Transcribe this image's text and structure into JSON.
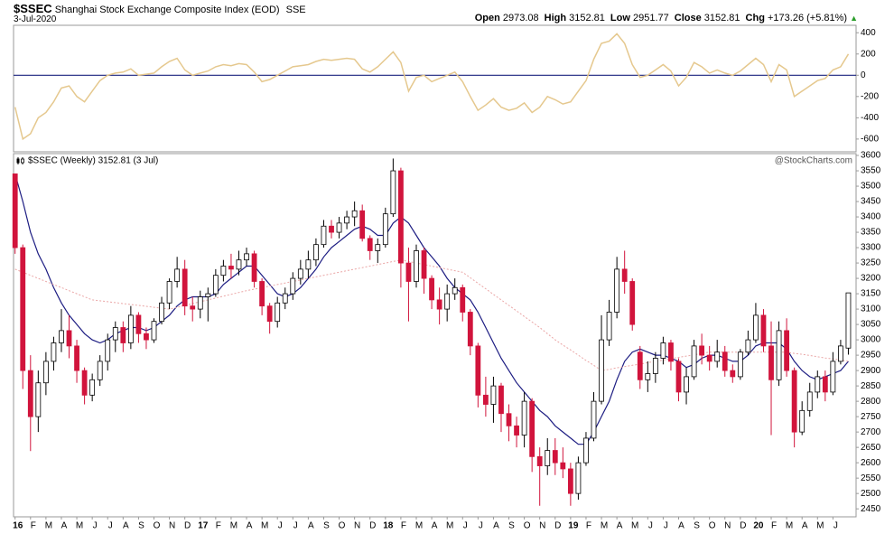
{
  "header": {
    "symbol": "$SSEC",
    "name": "Shanghai Stock Exchange Composite Index (EOD)",
    "exchange": "SSE",
    "date": "3-Jul-2020",
    "quote": [
      {
        "label": "Open",
        "value": "2973.08"
      },
      {
        "label": "High",
        "value": "3152.81"
      },
      {
        "label": "Low",
        "value": "2951.77"
      },
      {
        "label": "Close",
        "value": "3152.81"
      },
      {
        "label": "Chg",
        "value": "+173.26 (+5.81%)"
      }
    ]
  },
  "chart_data": [
    {
      "type": "line",
      "color": "#e5c88e",
      "zero_line_color": "#1a237e",
      "xlim": [
        -0.1,
        54.5
      ],
      "ylim": [
        -720,
        470
      ],
      "yticks": [
        400,
        200,
        0,
        -200,
        -400,
        -600
      ],
      "x": [
        0,
        0.5,
        1,
        1.5,
        2,
        2.5,
        3,
        3.5,
        4,
        4.5,
        5,
        5.5,
        6,
        6.5,
        7,
        7.5,
        8,
        8.5,
        9,
        9.5,
        10,
        10.5,
        11,
        11.5,
        12,
        12.5,
        13,
        13.5,
        14,
        14.5,
        15,
        15.5,
        16,
        16.5,
        17,
        17.5,
        18,
        18.5,
        19,
        19.5,
        20,
        20.5,
        21,
        21.5,
        22,
        22.5,
        23,
        23.5,
        24,
        24.5,
        25,
        25.5,
        26,
        26.5,
        27,
        27.5,
        28,
        28.5,
        29,
        29.5,
        30,
        30.5,
        31,
        31.5,
        32,
        32.5,
        33,
        33.5,
        34,
        34.5,
        35,
        35.5,
        36,
        36.5,
        37,
        37.5,
        38,
        38.5,
        39,
        39.5,
        40,
        40.5,
        41,
        41.5,
        42,
        42.5,
        43,
        43.5,
        44,
        44.5,
        45,
        45.5,
        46,
        46.5,
        47,
        47.5,
        48,
        48.5,
        49,
        49.5,
        50,
        50.5,
        51,
        51.5,
        52,
        52.5,
        53,
        53.5,
        54
      ],
      "values": [
        -300,
        -600,
        -550,
        -400,
        -350,
        -250,
        -120,
        -100,
        -200,
        -250,
        -150,
        -50,
        0,
        20,
        30,
        60,
        0,
        10,
        20,
        80,
        130,
        160,
        50,
        0,
        20,
        40,
        80,
        100,
        90,
        110,
        100,
        30,
        -60,
        -40,
        0,
        40,
        80,
        90,
        100,
        130,
        150,
        140,
        150,
        160,
        150,
        60,
        30,
        80,
        150,
        220,
        120,
        -150,
        -20,
        0,
        -60,
        -30,
        0,
        30,
        -60,
        -200,
        -330,
        -280,
        -220,
        -300,
        -330,
        -310,
        -260,
        -350,
        -300,
        -200,
        -230,
        -270,
        -250,
        -150,
        -50,
        150,
        300,
        320,
        390,
        300,
        100,
        -20,
        0,
        50,
        100,
        40,
        -100,
        -20,
        120,
        80,
        20,
        50,
        20,
        0,
        40,
        100,
        160,
        100,
        -60,
        100,
        50,
        -200,
        -150,
        -100,
        -50,
        -30,
        50,
        80,
        200
      ]
    },
    {
      "type": "candlestick",
      "legend": "$SSEC (Weekly) 3152.81 (3 Jul)",
      "watermark": "@StockCharts.com",
      "up_color": "#ffffff",
      "down_color": "#d1143c",
      "xlim": [
        -0.1,
        54.5
      ],
      "ylim": [
        2424,
        3606
      ],
      "yticks": [
        2450,
        2500,
        2550,
        2600,
        2650,
        2700,
        2750,
        2800,
        2850,
        2900,
        2950,
        3000,
        3050,
        3100,
        3150,
        3200,
        3250,
        3300,
        3350,
        3400,
        3450,
        3500,
        3550,
        3600
      ],
      "xticks": [
        {
          "value": 0,
          "label": "16"
        },
        {
          "value": 1,
          "label": "F"
        },
        {
          "value": 2,
          "label": "M"
        },
        {
          "value": 3,
          "label": "A"
        },
        {
          "value": 4,
          "label": "M"
        },
        {
          "value": 5,
          "label": "J"
        },
        {
          "value": 6,
          "label": "J"
        },
        {
          "value": 7,
          "label": "A"
        },
        {
          "value": 8,
          "label": "S"
        },
        {
          "value": 9,
          "label": "O"
        },
        {
          "value": 10,
          "label": "N"
        },
        {
          "value": 11,
          "label": "D"
        },
        {
          "value": 12,
          "label": "17"
        },
        {
          "value": 13,
          "label": "F"
        },
        {
          "value": 14,
          "label": "M"
        },
        {
          "value": 15,
          "label": "A"
        },
        {
          "value": 16,
          "label": "M"
        },
        {
          "value": 17,
          "label": "J"
        },
        {
          "value": 18,
          "label": "J"
        },
        {
          "value": 19,
          "label": "A"
        },
        {
          "value": 20,
          "label": "S"
        },
        {
          "value": 21,
          "label": "O"
        },
        {
          "value": 22,
          "label": "N"
        },
        {
          "value": 23,
          "label": "D"
        },
        {
          "value": 24,
          "label": "18"
        },
        {
          "value": 25,
          "label": "F"
        },
        {
          "value": 26,
          "label": "M"
        },
        {
          "value": 27,
          "label": "A"
        },
        {
          "value": 28,
          "label": "M"
        },
        {
          "value": 29,
          "label": "J"
        },
        {
          "value": 30,
          "label": "J"
        },
        {
          "value": 31,
          "label": "A"
        },
        {
          "value": 32,
          "label": "S"
        },
        {
          "value": 33,
          "label": "O"
        },
        {
          "value": 34,
          "label": "N"
        },
        {
          "value": 35,
          "label": "D"
        },
        {
          "value": 36,
          "label": "19"
        },
        {
          "value": 37,
          "label": "F"
        },
        {
          "value": 38,
          "label": "M"
        },
        {
          "value": 39,
          "label": "A"
        },
        {
          "value": 40,
          "label": "M"
        },
        {
          "value": 41,
          "label": "J"
        },
        {
          "value": 42,
          "label": "J"
        },
        {
          "value": 43,
          "label": "A"
        },
        {
          "value": 44,
          "label": "S"
        },
        {
          "value": 45,
          "label": "O"
        },
        {
          "value": 46,
          "label": "N"
        },
        {
          "value": 47,
          "label": "D"
        },
        {
          "value": 48,
          "label": "20"
        },
        {
          "value": 49,
          "label": "F"
        },
        {
          "value": 50,
          "label": "M"
        },
        {
          "value": 51,
          "label": "A"
        },
        {
          "value": 52,
          "label": "M"
        },
        {
          "value": 53,
          "label": "J"
        }
      ],
      "x": [
        0,
        0.5,
        1,
        1.5,
        2,
        2.5,
        3,
        3.5,
        4,
        4.5,
        5,
        5.5,
        6,
        6.5,
        7,
        7.5,
        8,
        8.5,
        9,
        9.5,
        10,
        10.5,
        11,
        11.5,
        12,
        12.5,
        13,
        13.5,
        14,
        14.5,
        15,
        15.5,
        16,
        16.5,
        17,
        17.5,
        18,
        18.5,
        19,
        19.5,
        20,
        20.5,
        21,
        21.5,
        22,
        22.5,
        23,
        23.5,
        24,
        24.5,
        25,
        25.5,
        26,
        26.5,
        27,
        27.5,
        28,
        28.5,
        29,
        29.5,
        30,
        30.5,
        31,
        31.5,
        32,
        32.5,
        33,
        33.5,
        34,
        34.5,
        35,
        35.5,
        36,
        36.5,
        37,
        37.5,
        38,
        38.5,
        39,
        39.5,
        40,
        40.5,
        41,
        41.5,
        42,
        42.5,
        43,
        43.5,
        44,
        44.5,
        45,
        45.5,
        46,
        46.5,
        47,
        47.5,
        48,
        48.5,
        49,
        49.5,
        50,
        50.5,
        51,
        51.5,
        52,
        52.5,
        53,
        53.5,
        54
      ],
      "open": [
        3540,
        3300,
        2900,
        2750,
        2860,
        2930,
        2990,
        3030,
        2980,
        2900,
        2820,
        2870,
        2930,
        3000,
        3040,
        2990,
        3080,
        3020,
        3000,
        3060,
        3120,
        3190,
        3230,
        3110,
        3100,
        3140,
        3150,
        3210,
        3240,
        3230,
        3260,
        3280,
        3190,
        3110,
        3060,
        3120,
        3150,
        3200,
        3230,
        3260,
        3310,
        3370,
        3350,
        3380,
        3400,
        3420,
        3330,
        3290,
        3310,
        3410,
        3550,
        3250,
        3190,
        3290,
        3200,
        3130,
        3100,
        3150,
        3170,
        3090,
        2980,
        2820,
        2790,
        2850,
        2760,
        2720,
        2690,
        2800,
        2620,
        2590,
        2640,
        2600,
        2580,
        2500,
        2600,
        2680,
        2800,
        3000,
        3090,
        3230,
        3190,
        2960,
        2870,
        2890,
        2940,
        2990,
        2930,
        2830,
        2880,
        2980,
        2950,
        2930,
        2960,
        2900,
        2880,
        2960,
        3000,
        3080,
        2980,
        2870,
        3030,
        2900,
        2700,
        2770,
        2830,
        2880,
        2830,
        2930,
        2973.08
      ],
      "high": [
        3540,
        3310,
        2950,
        2900,
        2960,
        3010,
        3100,
        3080,
        3000,
        2910,
        2890,
        2950,
        3020,
        3060,
        3060,
        3110,
        3090,
        3040,
        3070,
        3140,
        3200,
        3270,
        3260,
        3140,
        3160,
        3170,
        3230,
        3260,
        3280,
        3290,
        3300,
        3290,
        3200,
        3120,
        3140,
        3170,
        3220,
        3260,
        3290,
        3330,
        3390,
        3390,
        3400,
        3420,
        3450,
        3440,
        3340,
        3330,
        3430,
        3590,
        3560,
        3300,
        3310,
        3300,
        3210,
        3170,
        3180,
        3200,
        3180,
        3100,
        2990,
        2880,
        2880,
        2860,
        2790,
        2750,
        2830,
        2810,
        2650,
        2680,
        2680,
        2650,
        2600,
        2620,
        2700,
        2830,
        3080,
        3130,
        3270,
        3290,
        3200,
        2980,
        2930,
        2960,
        3010,
        3000,
        2940,
        2910,
        3000,
        3020,
        2980,
        3000,
        2980,
        2920,
        2970,
        3030,
        3120,
        3100,
        3060,
        3060,
        3070,
        2910,
        2800,
        2860,
        2900,
        2900,
        2960,
        3000,
        3152.81
      ],
      "low": [
        3280,
        2840,
        2638,
        2700,
        2820,
        2900,
        2960,
        2940,
        2860,
        2790,
        2800,
        2850,
        2900,
        2960,
        2960,
        2970,
        2990,
        2970,
        2990,
        3050,
        3100,
        3170,
        3080,
        3060,
        3070,
        3060,
        3140,
        3190,
        3200,
        3210,
        3240,
        3170,
        3080,
        3020,
        3040,
        3100,
        3130,
        3180,
        3200,
        3240,
        3300,
        3330,
        3330,
        3360,
        3370,
        3320,
        3260,
        3250,
        3300,
        3400,
        3170,
        3060,
        3170,
        3150,
        3100,
        3050,
        3060,
        3130,
        3060,
        2950,
        2780,
        2750,
        2730,
        2700,
        2670,
        2650,
        2650,
        2570,
        2460,
        2560,
        2560,
        2550,
        2460,
        2480,
        2590,
        2670,
        2790,
        2980,
        3070,
        3150,
        3030,
        2840,
        2830,
        2860,
        2920,
        2900,
        2800,
        2790,
        2870,
        2920,
        2900,
        2910,
        2880,
        2860,
        2870,
        2950,
        2990,
        2960,
        2690,
        2850,
        2880,
        2650,
        2690,
        2750,
        2810,
        2800,
        2820,
        2920,
        2951.77
      ],
      "close": [
        3300,
        2900,
        2750,
        2860,
        2930,
        2990,
        3030,
        2980,
        2900,
        2820,
        2870,
        2930,
        3000,
        3040,
        2990,
        3080,
        3020,
        3000,
        3060,
        3120,
        3190,
        3230,
        3110,
        3100,
        3140,
        3150,
        3210,
        3240,
        3230,
        3260,
        3280,
        3190,
        3110,
        3060,
        3120,
        3150,
        3200,
        3230,
        3260,
        3310,
        3370,
        3350,
        3380,
        3400,
        3420,
        3330,
        3290,
        3310,
        3410,
        3550,
        3250,
        3190,
        3290,
        3200,
        3130,
        3100,
        3150,
        3170,
        3090,
        2980,
        2820,
        2790,
        2850,
        2760,
        2720,
        2690,
        2800,
        2620,
        2590,
        2640,
        2600,
        2580,
        2500,
        2600,
        2680,
        2800,
        3000,
        3090,
        3230,
        3190,
        3050,
        2870,
        2890,
        2940,
        2990,
        2930,
        2830,
        2880,
        2980,
        2950,
        2930,
        2960,
        2900,
        2880,
        2960,
        3000,
        3080,
        2980,
        2870,
        3030,
        2900,
        2700,
        2770,
        2830,
        2880,
        2830,
        2930,
        2980,
        3152.81
      ],
      "overlays": [
        {
          "color": "#1c1c82",
          "dash": false,
          "values": [
            3540,
            3450,
            3350,
            3280,
            3230,
            3170,
            3120,
            3080,
            3050,
            3020,
            3000,
            2990,
            3000,
            3020,
            3030,
            3040,
            3040,
            3030,
            3040,
            3060,
            3080,
            3110,
            3130,
            3140,
            3140,
            3140,
            3150,
            3180,
            3200,
            3220,
            3240,
            3240,
            3210,
            3180,
            3150,
            3140,
            3150,
            3170,
            3200,
            3230,
            3270,
            3300,
            3320,
            3340,
            3360,
            3370,
            3360,
            3340,
            3340,
            3380,
            3400,
            3380,
            3340,
            3300,
            3270,
            3240,
            3200,
            3170,
            3150,
            3130,
            3090,
            3040,
            2990,
            2940,
            2900,
            2860,
            2830,
            2800,
            2770,
            2750,
            2720,
            2700,
            2680,
            2660,
            2660,
            2700,
            2750,
            2800,
            2870,
            2930,
            2960,
            2970,
            2960,
            2950,
            2950,
            2940,
            2930,
            2910,
            2920,
            2940,
            2950,
            2950,
            2940,
            2930,
            2930,
            2950,
            2980,
            2990,
            2990,
            2990,
            2970,
            2930,
            2900,
            2880,
            2870,
            2880,
            2890,
            2900,
            2930
          ]
        },
        {
          "color": "#eaa6a6",
          "dash": true,
          "values": [
            3230,
            3220,
            3210,
            3200,
            3190,
            3180,
            3170,
            3160,
            3150,
            3140,
            3130,
            3127,
            3124,
            3121,
            3118,
            3115,
            3112,
            3109,
            3106,
            3103,
            3100,
            3106,
            3112,
            3118,
            3124,
            3130,
            3136,
            3142,
            3148,
            3154,
            3160,
            3165,
            3170,
            3175,
            3180,
            3185,
            3190,
            3195,
            3200,
            3205,
            3210,
            3215,
            3220,
            3225,
            3230,
            3235,
            3240,
            3245,
            3250,
            3255,
            3260,
            3255,
            3250,
            3245,
            3240,
            3235,
            3230,
            3225,
            3220,
            3202,
            3184,
            3166,
            3148,
            3130,
            3112,
            3094,
            3076,
            3058,
            3040,
            3020,
            3000,
            2983,
            2967,
            2950,
            2933,
            2917,
            2900,
            2904,
            2909,
            2913,
            2917,
            2921,
            2926,
            2930,
            2934,
            2939,
            2943,
            2947,
            2951,
            2956,
            2960,
            2960,
            2960,
            2960,
            2960,
            2960,
            2960,
            2960,
            2960,
            2960,
            2960,
            2956,
            2953,
            2949,
            2945,
            2941,
            2938,
            2934,
            2930
          ]
        }
      ]
    }
  ]
}
